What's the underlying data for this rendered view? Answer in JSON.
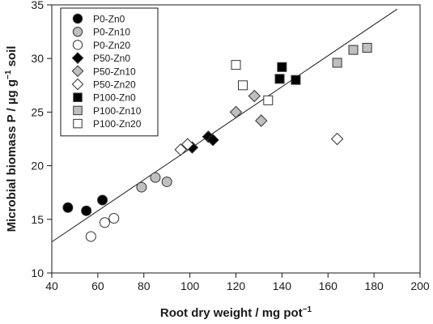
{
  "chart_data": {
    "type": "scatter",
    "xlabel": "Root dry weight / mg pot",
    "xlabel_sup": "−1",
    "ylabel": "Microbial biomass P / µg g",
    "ylabel_sup": "−1",
    "ylabel_suffix": " soil",
    "xlim": [
      40,
      200
    ],
    "ylim": [
      10,
      35
    ],
    "xticks": [
      40,
      60,
      80,
      100,
      120,
      140,
      160,
      180,
      200
    ],
    "yticks": [
      10,
      15,
      20,
      25,
      30,
      35
    ],
    "grid": false,
    "legend_position": "top-left",
    "trendline": {
      "x": [
        40,
        190
      ],
      "y": [
        12.9,
        34.6
      ]
    },
    "series": [
      {
        "name": "P0-Zn0",
        "marker": "circle",
        "fill": "#000000",
        "points": [
          [
            47,
            16.1
          ],
          [
            55,
            15.8
          ],
          [
            62,
            16.8
          ]
        ]
      },
      {
        "name": "P0-Zn10",
        "marker": "circle",
        "fill": "#bfbfbf",
        "points": [
          [
            79,
            18.0
          ],
          [
            85,
            18.9
          ],
          [
            90,
            18.5
          ]
        ]
      },
      {
        "name": "P0-Zn20",
        "marker": "circle",
        "fill": "#ffffff",
        "points": [
          [
            57,
            13.4
          ],
          [
            63,
            14.7
          ],
          [
            67,
            15.1
          ]
        ]
      },
      {
        "name": "P50-Zn0",
        "marker": "diamond",
        "fill": "#000000",
        "points": [
          [
            101,
            21.7
          ],
          [
            108,
            22.7
          ],
          [
            110,
            22.4
          ]
        ]
      },
      {
        "name": "P50-Zn10",
        "marker": "diamond",
        "fill": "#bfbfbf",
        "points": [
          [
            120,
            25.0
          ],
          [
            128,
            26.5
          ],
          [
            131,
            24.2
          ]
        ]
      },
      {
        "name": "P50-Zn20",
        "marker": "diamond",
        "fill": "#ffffff",
        "points": [
          [
            96,
            21.5
          ],
          [
            99,
            22.0
          ],
          [
            164,
            22.5
          ]
        ]
      },
      {
        "name": "P100-Zn0",
        "marker": "square",
        "fill": "#000000",
        "points": [
          [
            139,
            28.1
          ],
          [
            140,
            29.2
          ],
          [
            146,
            28.0
          ]
        ]
      },
      {
        "name": "P100-Zn10",
        "marker": "square",
        "fill": "#bfbfbf",
        "points": [
          [
            164,
            29.6
          ],
          [
            171,
            30.8
          ],
          [
            177,
            31.0
          ]
        ]
      },
      {
        "name": "P100-Zn20",
        "marker": "square",
        "fill": "#ffffff",
        "points": [
          [
            120,
            29.4
          ],
          [
            123,
            27.5
          ],
          [
            134,
            26.1
          ]
        ]
      }
    ]
  }
}
